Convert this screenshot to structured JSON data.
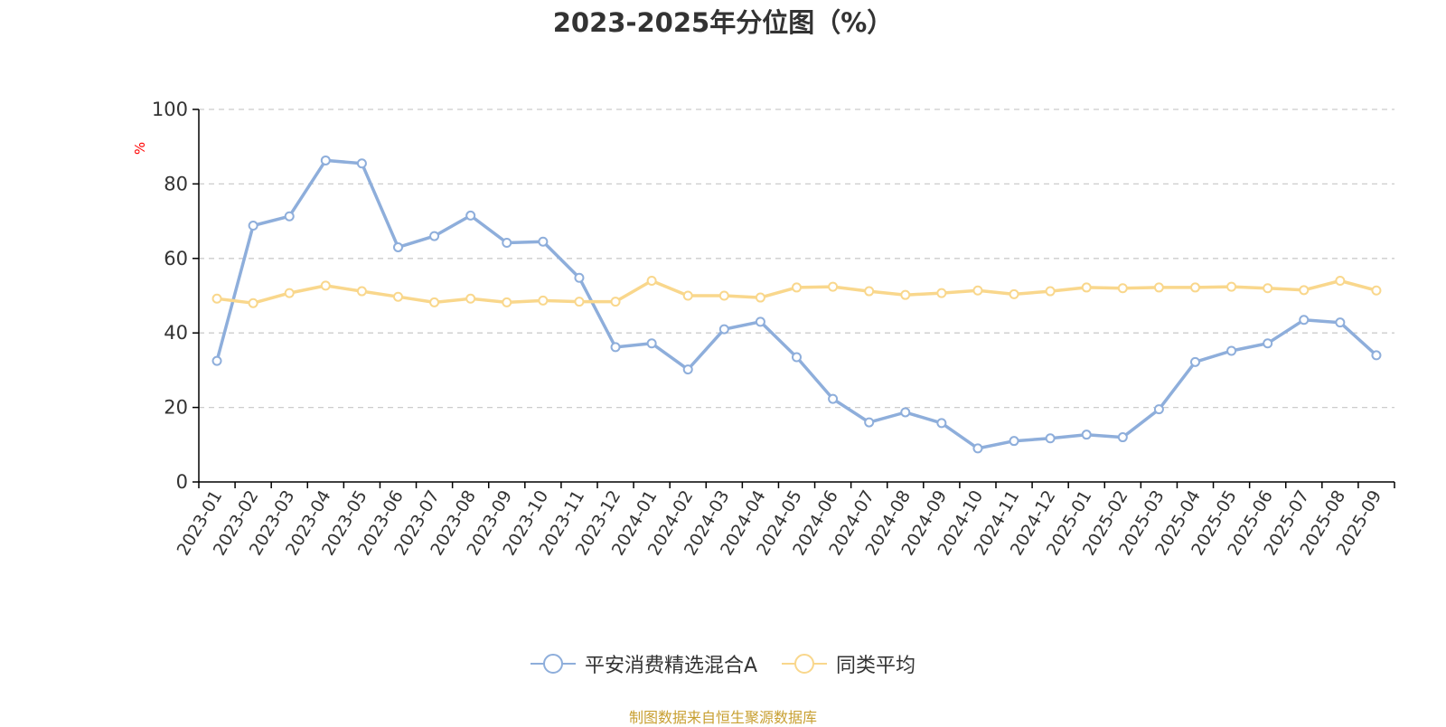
{
  "chart_data": {
    "type": "line",
    "title": "2023-2025年分位图（%）",
    "ylabel": "%",
    "xlabel": "",
    "ylim": [
      0,
      100
    ],
    "yticks": [
      0,
      20,
      40,
      60,
      80,
      100
    ],
    "grid": true,
    "legend_position": "bottom-center",
    "categories": [
      "2023-01",
      "2023-02",
      "2023-03",
      "2023-04",
      "2023-05",
      "2023-06",
      "2023-07",
      "2023-08",
      "2023-09",
      "2023-10",
      "2023-11",
      "2023-12",
      "2024-01",
      "2024-02",
      "2024-03",
      "2024-04",
      "2024-05",
      "2024-06",
      "2024-07",
      "2024-08",
      "2024-09",
      "2024-10",
      "2024-11",
      "2024-12",
      "2025-01",
      "2025-02",
      "2025-03",
      "2025-04",
      "2025-05",
      "2025-06",
      "2025-07",
      "2025-08",
      "2025-09"
    ],
    "series": [
      {
        "name": "平安消费精选混合A",
        "color": "#8eaedb",
        "values": [
          32.5,
          68.8,
          71.3,
          86.3,
          85.5,
          63.0,
          66.0,
          71.5,
          64.2,
          64.5,
          54.8,
          36.2,
          37.2,
          30.2,
          41.0,
          43.0,
          33.5,
          22.3,
          16.0,
          18.7,
          15.8,
          9.0,
          11.0,
          11.7,
          12.7,
          12.0,
          19.5,
          32.2,
          35.2,
          37.2,
          43.5,
          42.8,
          34.0
        ]
      },
      {
        "name": "同类平均",
        "color": "#f9d78c",
        "values": [
          49.2,
          48.0,
          50.7,
          52.7,
          51.2,
          49.7,
          48.2,
          49.2,
          48.2,
          48.7,
          48.4,
          48.4,
          54.0,
          50.0,
          50.0,
          49.5,
          52.2,
          52.4,
          51.2,
          50.2,
          50.7,
          51.4,
          50.4,
          51.2,
          52.2,
          52.0,
          52.2,
          52.2,
          52.4,
          52.0,
          51.5,
          54.0,
          51.4
        ]
      }
    ]
  },
  "footer": {
    "source_text": "制图数据来自恒生聚源数据库"
  },
  "colors": {
    "axis": "#000000",
    "grid": "#cccccc",
    "footer": "#c8a032"
  }
}
